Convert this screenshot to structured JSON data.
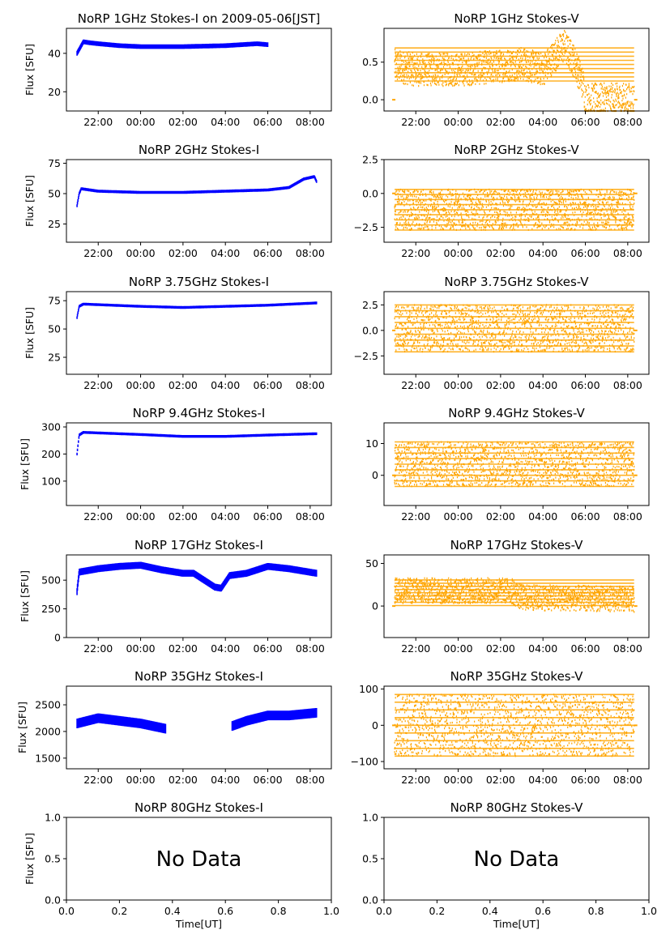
{
  "figure": {
    "xlabel": "Time[UT]",
    "ylabel": "Flux [SFU]",
    "no_data_text": "No Data",
    "colors": {
      "stokes_i": "#0000ff",
      "stokes_v": "#ffa500"
    },
    "time_ticks": [
      "22:00",
      "00:00",
      "02:00",
      "04:00",
      "06:00",
      "08:00"
    ]
  },
  "chart_data": [
    {
      "title": "NoRP 1GHz Stokes-I on 2009-05-06[JST]",
      "type": "scatter",
      "stokes": "I",
      "ylabel": "Flux [SFU]",
      "ylim": [
        10,
        53
      ],
      "yticks": [
        20,
        40
      ],
      "xlim": [
        20.5,
        33.0
      ],
      "x_unit": "hour UT (24+ = next day)",
      "series": [
        {
          "values_profile": [
            [
              21.0,
              40
            ],
            [
              21.1,
              42
            ],
            [
              21.3,
              46
            ],
            [
              21.6,
              45.5
            ],
            [
              22.0,
              45
            ],
            [
              23.0,
              44
            ],
            [
              24.0,
              43.5
            ],
            [
              26.0,
              43.5
            ],
            [
              28.0,
              44
            ],
            [
              29.5,
              45
            ],
            [
              30.0,
              44.5
            ]
          ],
          "spread": 1.2
        }
      ]
    },
    {
      "title": "NoRP 1GHz Stokes-V",
      "type": "scatter",
      "stokes": "V",
      "ylim": [
        -0.15,
        0.95
      ],
      "yticks": [
        0.0,
        0.5
      ],
      "xlim": [
        20.5,
        33.0
      ],
      "series": [
        {
          "values_profile": [
            [
              21.0,
              0.45
            ],
            [
              22.0,
              0.4
            ],
            [
              23.0,
              0.4
            ],
            [
              24.0,
              0.4
            ],
            [
              25.0,
              0.42
            ],
            [
              26.0,
              0.45
            ],
            [
              27.0,
              0.48
            ],
            [
              28.0,
              0.4
            ],
            [
              28.6,
              0.6
            ],
            [
              29.0,
              0.72
            ],
            [
              29.5,
              0.5
            ],
            [
              29.9,
              0.2
            ],
            [
              30.0,
              0.0
            ],
            [
              32.3,
              0.0
            ]
          ],
          "spread": 0.22
        }
      ]
    },
    {
      "title": "NoRP 2GHz Stokes-I",
      "type": "scatter",
      "stokes": "I",
      "ylabel": "Flux [SFU]",
      "ylim": [
        10,
        78
      ],
      "yticks": [
        25,
        50,
        75
      ],
      "xlim": [
        20.5,
        33.0
      ],
      "series": [
        {
          "values_profile": [
            [
              21.0,
              40
            ],
            [
              21.1,
              50
            ],
            [
              21.2,
              54
            ],
            [
              22.0,
              52
            ],
            [
              24.0,
              51
            ],
            [
              26.0,
              51
            ],
            [
              28.0,
              52
            ],
            [
              30.0,
              53
            ],
            [
              31.0,
              55
            ],
            [
              31.7,
              62
            ],
            [
              32.2,
              64
            ],
            [
              32.3,
              60
            ]
          ],
          "spread": 1.2
        }
      ]
    },
    {
      "title": "NoRP 2GHz Stokes-V",
      "type": "scatter",
      "stokes": "V",
      "ylim": [
        -3.6,
        2.5
      ],
      "yticks": [
        -2.5,
        0.0,
        2.5
      ],
      "xlim": [
        20.5,
        33.0
      ],
      "series": [
        {
          "values_profile": [
            [
              21.0,
              -1.2
            ],
            [
              32.3,
              -1.2
            ]
          ],
          "spread": 1.5
        }
      ]
    },
    {
      "title": "NoRP 3.75GHz Stokes-I",
      "type": "scatter",
      "stokes": "I",
      "ylabel": "Flux [SFU]",
      "ylim": [
        10,
        83
      ],
      "yticks": [
        25,
        50,
        75
      ],
      "xlim": [
        20.5,
        33.0
      ],
      "series": [
        {
          "values_profile": [
            [
              21.0,
              60
            ],
            [
              21.1,
              70
            ],
            [
              21.3,
              72
            ],
            [
              24.0,
              70
            ],
            [
              26.0,
              69
            ],
            [
              28.0,
              70
            ],
            [
              30.0,
              71
            ],
            [
              32.3,
              73
            ]
          ],
          "spread": 1.2
        }
      ]
    },
    {
      "title": "NoRP 3.75GHz Stokes-V",
      "type": "scatter",
      "stokes": "V",
      "ylim": [
        -4.3,
        3.8
      ],
      "yticks": [
        -2.5,
        0.0,
        2.5
      ],
      "xlim": [
        20.5,
        33.0
      ],
      "series": [
        {
          "values_profile": [
            [
              21.0,
              0.2
            ],
            [
              32.3,
              0.2
            ]
          ],
          "spread": 2.3
        }
      ]
    },
    {
      "title": "NoRP 9.4GHz Stokes-I",
      "type": "scatter",
      "stokes": "I",
      "ylabel": "Flux [SFU]",
      "ylim": [
        10,
        315
      ],
      "yticks": [
        100,
        200,
        300
      ],
      "xlim": [
        20.5,
        33.0
      ],
      "series": [
        {
          "values_profile": [
            [
              21.0,
              200
            ],
            [
              21.1,
              270
            ],
            [
              21.3,
              280
            ],
            [
              24.0,
              272
            ],
            [
              26.0,
              265
            ],
            [
              28.0,
              265
            ],
            [
              30.0,
              270
            ],
            [
              32.3,
              275
            ]
          ],
          "spread": 5
        }
      ]
    },
    {
      "title": "NoRP 9.4GHz Stokes-V",
      "type": "scatter",
      "stokes": "V",
      "ylim": [
        -9.5,
        16.5
      ],
      "yticks": [
        0,
        10
      ],
      "xlim": [
        20.5,
        33.0
      ],
      "series": [
        {
          "values_profile": [
            [
              21.0,
              3.5
            ],
            [
              32.3,
              3.5
            ]
          ],
          "spread": 7
        }
      ]
    },
    {
      "title": "NoRP 17GHz Stokes-I",
      "type": "scatter",
      "stokes": "I",
      "ylabel": "Flux [SFU]",
      "ylim": [
        0,
        720
      ],
      "yticks": [
        0,
        250,
        500
      ],
      "xlim": [
        20.5,
        33.0
      ],
      "series": [
        {
          "values_profile": [
            [
              21.0,
              400
            ],
            [
              21.1,
              570
            ],
            [
              22.0,
              600
            ],
            [
              23.0,
              620
            ],
            [
              24.0,
              630
            ],
            [
              25.0,
              590
            ],
            [
              26.0,
              560
            ],
            [
              26.5,
              560
            ],
            [
              27.0,
              500
            ],
            [
              27.5,
              440
            ],
            [
              27.8,
              430
            ],
            [
              28.2,
              540
            ],
            [
              29.0,
              560
            ],
            [
              30.0,
              620
            ],
            [
              31.0,
              600
            ],
            [
              32.3,
              560
            ]
          ],
          "spread": 30
        }
      ]
    },
    {
      "title": "NoRP 17GHz Stokes-V",
      "type": "scatter",
      "stokes": "V",
      "ylim": [
        -37,
        60
      ],
      "yticks": [
        0,
        50
      ],
      "xlim": [
        20.5,
        33.0
      ],
      "series": [
        {
          "values_profile": [
            [
              21.0,
              18
            ],
            [
              26.5,
              18
            ],
            [
              27.0,
              10
            ],
            [
              32.3,
              8
            ]
          ],
          "spread": 15
        }
      ]
    },
    {
      "title": "NoRP 35GHz Stokes-I",
      "type": "scatter",
      "stokes": "I",
      "ylabel": "Flux [SFU]",
      "ylim": [
        1300,
        2850
      ],
      "yticks": [
        1500,
        2000,
        2500
      ],
      "xlim": [
        20.5,
        33.0
      ],
      "series": [
        {
          "values_profile": [
            [
              21.0,
              2150
            ],
            [
              22.0,
              2250
            ],
            [
              23.0,
              2200
            ],
            [
              24.0,
              2150
            ],
            [
              24.6,
              2100
            ],
            [
              25.2,
              2050
            ],
            [
              null,
              null
            ],
            [
              28.3,
              2100
            ],
            [
              29.0,
              2200
            ],
            [
              30.0,
              2300
            ],
            [
              31.0,
              2300
            ],
            [
              32.3,
              2350
            ]
          ],
          "spread": 90
        }
      ]
    },
    {
      "title": "NoRP 35GHz Stokes-V",
      "type": "scatter",
      "stokes": "V",
      "ylim": [
        -120,
        108
      ],
      "yticks": [
        -100,
        0,
        100
      ],
      "xlim": [
        20.5,
        33.0
      ],
      "series": [
        {
          "values_profile": [
            [
              21.0,
              0
            ],
            [
              32.3,
              0
            ]
          ],
          "spread": 85
        }
      ]
    },
    {
      "title": "NoRP 80GHz Stokes-I",
      "type": "scatter",
      "stokes": "I",
      "ylabel": "Flux [SFU]",
      "ylim": [
        0.0,
        1.0
      ],
      "yticks": [
        0.0,
        0.5,
        1.0
      ],
      "xticks": [
        0.0,
        0.2,
        0.4,
        0.6,
        0.8,
        1.0
      ],
      "xlabel": "Time[UT]",
      "no_data": true
    },
    {
      "title": "NoRP 80GHz Stokes-V",
      "type": "scatter",
      "stokes": "V",
      "ylim": [
        0.0,
        1.0
      ],
      "yticks": [
        0.0,
        0.5,
        1.0
      ],
      "xticks": [
        0.0,
        0.2,
        0.4,
        0.6,
        0.8,
        1.0
      ],
      "xlabel": "Time[UT]",
      "no_data": true
    }
  ]
}
